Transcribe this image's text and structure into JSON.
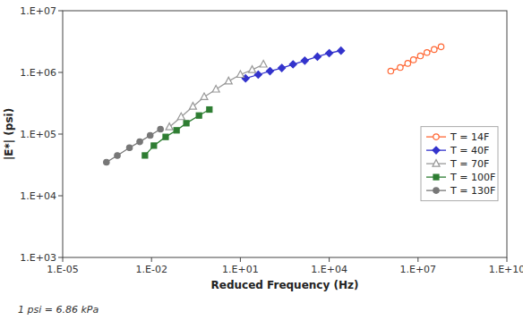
{
  "chart_data": {
    "type": "line",
    "xlabel": "Reduced Frequency (Hz)",
    "ylabel": "|E*| (psi)",
    "annotations": [
      "1 psi = 6.86 kPa"
    ],
    "log": true,
    "grid": false,
    "legend": "right",
    "xlim": [
      1e-05,
      10000000000.0
    ],
    "ylim": [
      1000.0,
      10000000.0
    ],
    "xticks": [
      {
        "value": 1e-05,
        "label": "1.E-05"
      },
      {
        "value": 0.01,
        "label": "1.E-02"
      },
      {
        "value": 10.0,
        "label": "1.E+01"
      },
      {
        "value": 10000.0,
        "label": "1.E+04"
      },
      {
        "value": 10000000.0,
        "label": "1.E+07"
      },
      {
        "value": 10000000000.0,
        "label": "1.E+10"
      }
    ],
    "yticks": [
      {
        "value": 1000.0,
        "label": "1.E+03"
      },
      {
        "value": 10000.0,
        "label": "1.E+04"
      },
      {
        "value": 100000.0,
        "label": "1.E+05"
      },
      {
        "value": 1000000.0,
        "label": "1.E+06"
      },
      {
        "value": 10000000.0,
        "label": "1.E+07"
      }
    ],
    "series": [
      {
        "name": "T = 14F",
        "color": "#FF6633",
        "marker": "open-circle",
        "line_style": "solid",
        "x": [
          1200000.0,
          2500000.0,
          4500000.0,
          7000000.0,
          12000000.0,
          20000000.0,
          35000000.0,
          60000000.0
        ],
        "values": [
          1050000.0,
          1200000.0,
          1400000.0,
          1600000.0,
          1850000.0,
          2100000.0,
          2350000.0,
          2600000.0
        ]
      },
      {
        "name": "T = 40F",
        "color": "#3333CC",
        "marker": "diamond",
        "line_style": "solid",
        "x": [
          15.0,
          40.0,
          100.0,
          250.0,
          600.0,
          1500.0,
          4000.0,
          10000.0,
          25000.0
        ],
        "values": [
          800000.0,
          920000.0,
          1050000.0,
          1180000.0,
          1350000.0,
          1550000.0,
          1800000.0,
          2050000.0,
          2250000.0
        ]
      },
      {
        "name": "T = 70F",
        "color": "#999999",
        "marker": "open-triangle",
        "line_style": "solid",
        "x": [
          0.04,
          0.1,
          0.25,
          0.6,
          1.5,
          4.0,
          10.0,
          25.0,
          60.0
        ],
        "values": [
          130000.0,
          190000.0,
          280000.0,
          400000.0,
          530000.0,
          720000.0,
          920000.0,
          1100000.0,
          1350000.0
        ]
      },
      {
        "name": "T = 100F",
        "color": "#2E7D32",
        "marker": "square",
        "line_style": "solid",
        "x": [
          0.006,
          0.012,
          0.03,
          0.07,
          0.15,
          0.4,
          0.9
        ],
        "values": [
          45000.0,
          65000.0,
          90000.0,
          115000.0,
          150000.0,
          200000.0,
          250000.0
        ]
      },
      {
        "name": "T = 130F",
        "color": "#777777",
        "marker": "circle",
        "line_style": "solid",
        "x": [
          0.0003,
          0.0007,
          0.0018,
          0.004,
          0.009,
          0.02
        ],
        "values": [
          35000.0,
          45000.0,
          60000.0,
          75000.0,
          95000.0,
          120000.0
        ]
      }
    ]
  }
}
